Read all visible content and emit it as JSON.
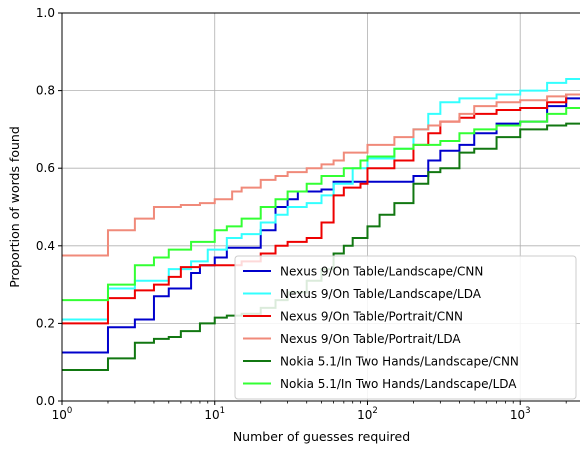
{
  "chart_data": {
    "type": "line",
    "xlabel": "Number of guesses required",
    "ylabel": "Proportion of words found",
    "xscale": "log",
    "xlim": [
      1,
      2500
    ],
    "ylim": [
      0,
      1
    ],
    "x_ticks": [
      {
        "value": 1,
        "base": "10",
        "exp": "0"
      },
      {
        "value": 10,
        "base": "10",
        "exp": "1"
      },
      {
        "value": 100,
        "base": "10",
        "exp": "2"
      },
      {
        "value": 1000,
        "base": "10",
        "exp": "3"
      }
    ],
    "y_ticks": [
      "0.0",
      "0.2",
      "0.4",
      "0.6",
      "0.8",
      "1.0"
    ],
    "grid": true,
    "legend_position": "lower-right",
    "series": [
      {
        "name": "Nexus 9/On Table/Landscape/CNN",
        "color": "#0000cc",
        "points": [
          [
            1,
            0.125
          ],
          [
            2,
            0.19
          ],
          [
            3,
            0.21
          ],
          [
            4,
            0.27
          ],
          [
            5,
            0.29
          ],
          [
            6,
            0.29
          ],
          [
            7,
            0.33
          ],
          [
            8,
            0.35
          ],
          [
            10,
            0.37
          ],
          [
            12,
            0.395
          ],
          [
            15,
            0.395
          ],
          [
            19,
            0.395
          ],
          [
            20,
            0.44
          ],
          [
            25,
            0.5
          ],
          [
            30,
            0.52
          ],
          [
            35,
            0.54
          ],
          [
            40,
            0.54
          ],
          [
            50,
            0.545
          ],
          [
            60,
            0.565
          ],
          [
            70,
            0.565
          ],
          [
            90,
            0.565
          ],
          [
            100,
            0.565
          ],
          [
            150,
            0.565
          ],
          [
            200,
            0.58
          ],
          [
            250,
            0.62
          ],
          [
            300,
            0.645
          ],
          [
            400,
            0.66
          ],
          [
            500,
            0.69
          ],
          [
            700,
            0.715
          ],
          [
            1000,
            0.72
          ],
          [
            1500,
            0.76
          ],
          [
            2000,
            0.78
          ],
          [
            2500,
            0.8
          ]
        ]
      },
      {
        "name": "Nexus 9/On Table/Landscape/LDA",
        "color": "#33ffff",
        "points": [
          [
            1,
            0.21
          ],
          [
            2,
            0.29
          ],
          [
            3,
            0.31
          ],
          [
            4,
            0.31
          ],
          [
            5,
            0.34
          ],
          [
            7,
            0.36
          ],
          [
            9,
            0.39
          ],
          [
            12,
            0.42
          ],
          [
            15,
            0.43
          ],
          [
            20,
            0.46
          ],
          [
            25,
            0.48
          ],
          [
            30,
            0.5
          ],
          [
            40,
            0.51
          ],
          [
            50,
            0.53
          ],
          [
            60,
            0.56
          ],
          [
            80,
            0.6
          ],
          [
            100,
            0.625
          ],
          [
            150,
            0.65
          ],
          [
            200,
            0.7
          ],
          [
            250,
            0.74
          ],
          [
            300,
            0.77
          ],
          [
            400,
            0.78
          ],
          [
            500,
            0.78
          ],
          [
            700,
            0.79
          ],
          [
            1000,
            0.8
          ],
          [
            1500,
            0.82
          ],
          [
            2000,
            0.83
          ],
          [
            2500,
            0.835
          ]
        ]
      },
      {
        "name": "Nexus 9/On Table/Portrait/CNN",
        "color": "#ee0000",
        "points": [
          [
            1,
            0.2
          ],
          [
            2,
            0.265
          ],
          [
            3,
            0.285
          ],
          [
            4,
            0.3
          ],
          [
            5,
            0.32
          ],
          [
            6,
            0.345
          ],
          [
            8,
            0.35
          ],
          [
            10,
            0.35
          ],
          [
            15,
            0.36
          ],
          [
            20,
            0.38
          ],
          [
            25,
            0.4
          ],
          [
            30,
            0.41
          ],
          [
            40,
            0.42
          ],
          [
            50,
            0.46
          ],
          [
            60,
            0.53
          ],
          [
            70,
            0.55
          ],
          [
            90,
            0.56
          ],
          [
            100,
            0.6
          ],
          [
            150,
            0.62
          ],
          [
            200,
            0.66
          ],
          [
            250,
            0.69
          ],
          [
            300,
            0.72
          ],
          [
            400,
            0.73
          ],
          [
            500,
            0.74
          ],
          [
            700,
            0.75
          ],
          [
            1000,
            0.755
          ],
          [
            1500,
            0.77
          ],
          [
            2000,
            0.79
          ],
          [
            2500,
            0.805
          ]
        ]
      },
      {
        "name": "Nexus 9/On Table/Portrait/LDA",
        "color": "#f08a7a",
        "points": [
          [
            1,
            0.375
          ],
          [
            2,
            0.44
          ],
          [
            3,
            0.47
          ],
          [
            4,
            0.5
          ],
          [
            5,
            0.5
          ],
          [
            6,
            0.505
          ],
          [
            8,
            0.51
          ],
          [
            10,
            0.52
          ],
          [
            13,
            0.54
          ],
          [
            15,
            0.55
          ],
          [
            20,
            0.57
          ],
          [
            25,
            0.58
          ],
          [
            30,
            0.59
          ],
          [
            40,
            0.6
          ],
          [
            50,
            0.61
          ],
          [
            60,
            0.62
          ],
          [
            70,
            0.64
          ],
          [
            100,
            0.66
          ],
          [
            150,
            0.68
          ],
          [
            200,
            0.7
          ],
          [
            250,
            0.71
          ],
          [
            300,
            0.72
          ],
          [
            400,
            0.74
          ],
          [
            500,
            0.76
          ],
          [
            700,
            0.77
          ],
          [
            1000,
            0.775
          ],
          [
            1500,
            0.785
          ],
          [
            2000,
            0.79
          ],
          [
            2500,
            0.8
          ]
        ]
      },
      {
        "name": "Nokia 5.1/In Two Hands/Landscape/CNN",
        "color": "#117711",
        "points": [
          [
            1,
            0.08
          ],
          [
            2,
            0.11
          ],
          [
            3,
            0.15
          ],
          [
            4,
            0.16
          ],
          [
            5,
            0.165
          ],
          [
            6,
            0.18
          ],
          [
            8,
            0.2
          ],
          [
            10,
            0.215
          ],
          [
            12,
            0.22
          ],
          [
            15,
            0.225
          ],
          [
            20,
            0.24
          ],
          [
            25,
            0.26
          ],
          [
            30,
            0.28
          ],
          [
            40,
            0.31
          ],
          [
            50,
            0.34
          ],
          [
            60,
            0.38
          ],
          [
            70,
            0.4
          ],
          [
            80,
            0.42
          ],
          [
            100,
            0.45
          ],
          [
            120,
            0.48
          ],
          [
            150,
            0.51
          ],
          [
            200,
            0.56
          ],
          [
            250,
            0.59
          ],
          [
            300,
            0.6
          ],
          [
            400,
            0.64
          ],
          [
            500,
            0.65
          ],
          [
            700,
            0.68
          ],
          [
            1000,
            0.7
          ],
          [
            1500,
            0.71
          ],
          [
            2000,
            0.715
          ],
          [
            2500,
            0.72
          ]
        ]
      },
      {
        "name": "Nokia 5.1/In Two Hands/Landscape/LDA",
        "color": "#33ff33",
        "points": [
          [
            1,
            0.26
          ],
          [
            2,
            0.3
          ],
          [
            3,
            0.35
          ],
          [
            4,
            0.37
          ],
          [
            5,
            0.39
          ],
          [
            7,
            0.41
          ],
          [
            10,
            0.44
          ],
          [
            12,
            0.45
          ],
          [
            15,
            0.47
          ],
          [
            20,
            0.5
          ],
          [
            25,
            0.52
          ],
          [
            30,
            0.54
          ],
          [
            40,
            0.56
          ],
          [
            50,
            0.58
          ],
          [
            70,
            0.6
          ],
          [
            90,
            0.62
          ],
          [
            100,
            0.63
          ],
          [
            150,
            0.65
          ],
          [
            200,
            0.66
          ],
          [
            300,
            0.67
          ],
          [
            400,
            0.69
          ],
          [
            500,
            0.7
          ],
          [
            700,
            0.71
          ],
          [
            1000,
            0.72
          ],
          [
            1500,
            0.74
          ],
          [
            2000,
            0.755
          ],
          [
            2500,
            0.76
          ]
        ]
      }
    ]
  }
}
